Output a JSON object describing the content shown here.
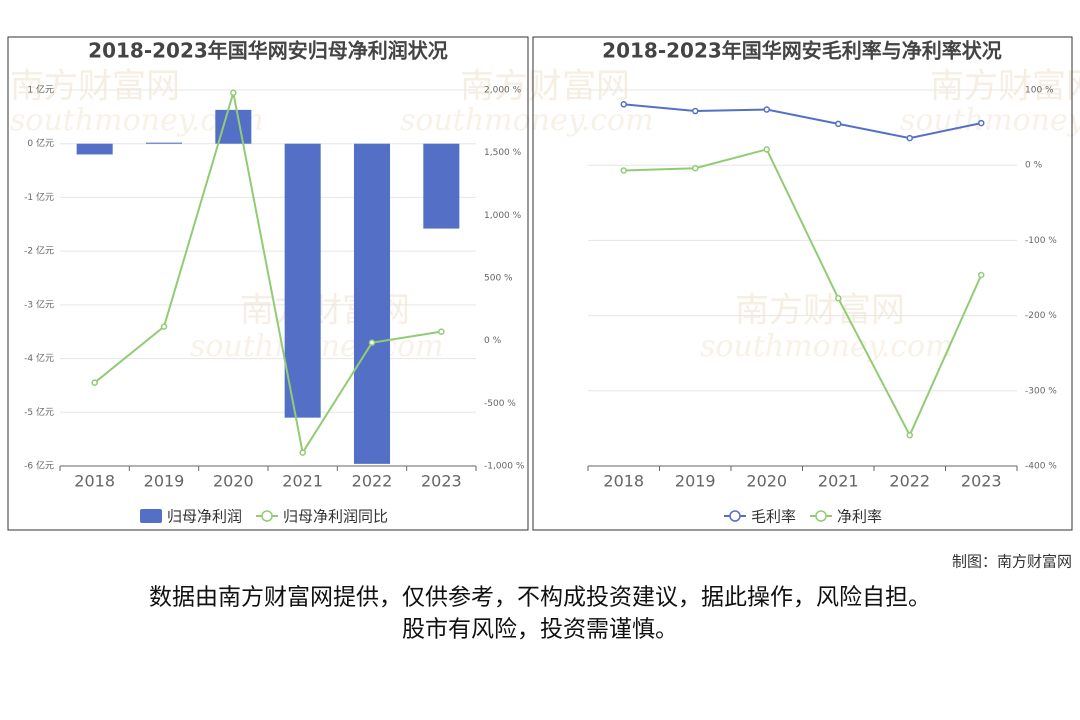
{
  "chart_data": [
    {
      "type": "bar_line",
      "title": "2018-2023年国华网安归母净利润状况",
      "categories": [
        "2018",
        "2019",
        "2020",
        "2021",
        "2022",
        "2023"
      ],
      "series": [
        {
          "name": "归母净利润",
          "color": "#5470c6",
          "values": [
            -0.2,
            0.02,
            0.63,
            -5.1,
            -5.96,
            -1.58
          ]
        },
        {
          "name": "归母净利润同比",
          "color": "#91cc75",
          "axis": "y2",
          "values": [
            -335,
            112,
            1978,
            -893,
            -16,
            72
          ]
        }
      ],
      "ylim": [
        -6,
        1
      ],
      "yticks": [
        {
          "value": 1,
          "label": "1 亿元"
        },
        {
          "value": 0,
          "label": "0 亿元"
        },
        {
          "value": -1,
          "label": "-1 亿元"
        },
        {
          "value": -2,
          "label": "-2 亿元"
        },
        {
          "value": -3,
          "label": "-3 亿元"
        },
        {
          "value": -4,
          "label": "-4 亿元"
        },
        {
          "value": -5,
          "label": "-5 亿元"
        },
        {
          "value": -6,
          "label": "-6 亿元"
        }
      ],
      "y2lim": [
        -1000,
        2000
      ],
      "y2ticks": [
        {
          "value": 2000,
          "label": "2,000 %"
        },
        {
          "value": 1500,
          "label": "1,500 %"
        },
        {
          "value": 1000,
          "label": "1,000 %"
        },
        {
          "value": 500,
          "label": "500 %"
        },
        {
          "value": 0,
          "label": "0 %"
        },
        {
          "value": -500,
          "label": "-500 %"
        },
        {
          "value": -1000,
          "label": "-1,000 %"
        }
      ],
      "grid": true
    },
    {
      "type": "line",
      "title": "2018-2023年国华网安毛利率与净利率状况",
      "categories": [
        "2018",
        "2019",
        "2020",
        "2021",
        "2022",
        "2023"
      ],
      "series": [
        {
          "name": "毛利率",
          "color": "#5470c6",
          "values": [
            81,
            72,
            74,
            55,
            36,
            56
          ]
        },
        {
          "name": "净利率",
          "color": "#91cc75",
          "values": [
            -7,
            -4,
            21,
            -177,
            -359,
            -146
          ]
        }
      ],
      "ylim": [
        -400,
        100
      ],
      "yticks": [
        {
          "value": 100,
          "label": "100 %"
        },
        {
          "value": 0,
          "label": "0 %"
        },
        {
          "value": -100,
          "label": "-100 %"
        },
        {
          "value": -200,
          "label": "-200 %"
        },
        {
          "value": -300,
          "label": "-300 %"
        },
        {
          "value": -400,
          "label": "-400 %"
        }
      ],
      "y_axis_side": "right",
      "grid": true
    }
  ],
  "credit": "制图：南方财富网",
  "disclaimer": [
    "数据由南方财富网提供，仅供参考，不构成投资建议，据此操作，风险自担。",
    "股市有风险，投资需谨慎。"
  ],
  "watermark": [
    "南方财富网",
    "southmoney.com"
  ]
}
